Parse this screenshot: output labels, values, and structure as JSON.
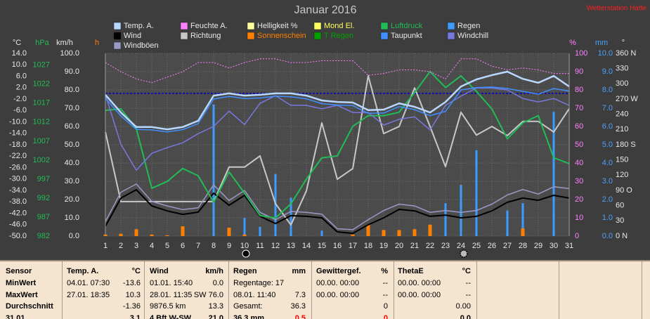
{
  "chart_data": {
    "type": "combo",
    "title": "Januar 2016",
    "caption": "Wetterstation Hatte",
    "x": [
      1,
      2,
      3,
      4,
      5,
      6,
      7,
      8,
      9,
      10,
      11,
      12,
      13,
      14,
      15,
      16,
      17,
      18,
      19,
      20,
      21,
      22,
      23,
      24,
      25,
      26,
      27,
      28,
      29,
      30,
      31
    ],
    "xlim": [
      1,
      31
    ],
    "grid": true,
    "axes": {
      "temp": {
        "label": "°C",
        "color": "#e8e8e8",
        "lim": [
          -50,
          14
        ],
        "ticks": [
          {
            "value": 14,
            "label": "14.0"
          },
          {
            "value": 10,
            "label": "10.0"
          },
          {
            "value": 6,
            "label": "6.0"
          },
          {
            "value": 2,
            "label": "2.0"
          },
          {
            "value": -2,
            "label": "-2.0"
          },
          {
            "value": -6,
            "label": "-6.0"
          },
          {
            "value": -10,
            "label": "-10.0"
          },
          {
            "value": -14,
            "label": "-14.0"
          },
          {
            "value": -18,
            "label": "-18.0"
          },
          {
            "value": -22,
            "label": "-22.0"
          },
          {
            "value": -26,
            "label": "-26.0"
          },
          {
            "value": -30,
            "label": "-30.0"
          },
          {
            "value": -34,
            "label": "-34.0"
          },
          {
            "value": -38,
            "label": "-38.0"
          },
          {
            "value": -42,
            "label": "-42.0"
          },
          {
            "value": -46,
            "label": "-46.0"
          },
          {
            "value": -50,
            "label": "-50.0"
          }
        ]
      },
      "pressure": {
        "label": "hPa",
        "color": "#22bb55",
        "lim": [
          982,
          1030.1
        ],
        "ticks": [
          1027,
          1022,
          1017,
          1012,
          1007,
          1002,
          997,
          992,
          987,
          982
        ]
      },
      "wind": {
        "label": "km/h",
        "color": "#e8e8e8",
        "lim": [
          0,
          100
        ],
        "ticks": [
          {
            "value": 100,
            "label": "100.0"
          },
          {
            "value": 90,
            "label": "90.0"
          },
          {
            "value": 80,
            "label": "80.0"
          },
          {
            "value": 70,
            "label": "70.0"
          },
          {
            "value": 60,
            "label": "60.0"
          },
          {
            "value": 50,
            "label": "50.0"
          },
          {
            "value": 40,
            "label": "40.0"
          },
          {
            "value": 30,
            "label": "30.0"
          },
          {
            "value": 20,
            "label": "20.0"
          },
          {
            "value": 10,
            "label": "10.0"
          },
          {
            "value": 0,
            "label": "0.0"
          }
        ]
      },
      "sun": {
        "label": "h",
        "color": "#ff8000",
        "lim": [
          0,
          24
        ],
        "ticks": []
      },
      "percent": {
        "label": "%",
        "color": "#ff80ff",
        "lim": [
          0,
          100
        ],
        "ticks": [
          100,
          90,
          80,
          70,
          60,
          50,
          40,
          30,
          20,
          10,
          0
        ]
      },
      "rain": {
        "label": "mm",
        "color": "#4aa0ff",
        "lim": [
          0,
          10
        ],
        "ticks": [
          {
            "value": 10,
            "label": "10.0"
          },
          {
            "value": 9,
            "label": "9.0"
          },
          {
            "value": 8,
            "label": "8.0"
          },
          {
            "value": 7,
            "label": "7.0"
          },
          {
            "value": 6,
            "label": "6.0"
          },
          {
            "value": 5,
            "label": "5.0"
          },
          {
            "value": 4,
            "label": "4.0"
          },
          {
            "value": 3,
            "label": "3.0"
          },
          {
            "value": 2,
            "label": "2.0"
          },
          {
            "value": 1,
            "label": "1.0"
          },
          {
            "value": 0,
            "label": "0.0"
          }
        ]
      },
      "direction": {
        "label": "°",
        "color": "#e8e8e8",
        "lim": [
          0,
          360
        ],
        "ticks": [
          {
            "value": 360,
            "label": "360 N"
          },
          330,
          300,
          {
            "value": 270,
            "label": "270 W"
          },
          240,
          210,
          {
            "value": 180,
            "label": "180 S"
          },
          150,
          120,
          {
            "value": 90,
            "label": "90 O"
          },
          60,
          30,
          {
            "value": 0,
            "label": "0 N"
          }
        ]
      }
    },
    "reference_line": {
      "axis": "temp",
      "value": 0,
      "color": "#0000c8"
    },
    "series": [
      {
        "name": "Temp. A.",
        "color": "#b8d8ff",
        "type": "line",
        "axis": "temp",
        "width": 2.5,
        "values": [
          -0.5,
          -6.7,
          -11.8,
          -11.8,
          -12.6,
          -11.8,
          -9.6,
          -0.8,
          0.0,
          -0.8,
          -0.5,
          0.0,
          0.0,
          -0.8,
          -2.5,
          -3.0,
          -3.2,
          -5.9,
          -5.7,
          -3.5,
          -4.7,
          -6.7,
          -3.0,
          2.4,
          4.9,
          6.4,
          7.6,
          5.1,
          3.7,
          6.1,
          2.4
        ]
      },
      {
        "name": "Feuchte A.",
        "color": "#ff80ff",
        "type": "line",
        "style": "dotted",
        "axis": "percent",
        "width": 1,
        "values": [
          95,
          90,
          86,
          84,
          87,
          90,
          95,
          95,
          92,
          95,
          97,
          97,
          95,
          95,
          96,
          96,
          96,
          88,
          89,
          91,
          91,
          90,
          86,
          97,
          97,
          93,
          91,
          92,
          91,
          89,
          89
        ]
      },
      {
        "name": "Helligkeit %",
        "color": "#ffffa0"
      },
      {
        "name": "Mond El.",
        "color": "#ffff60"
      },
      {
        "name": "Luftdruck",
        "color": "#22bb55",
        "type": "line",
        "axis": "pressure",
        "width": 2,
        "values": [
          1015.1,
          1015.5,
          1010.3,
          994.6,
          996.4,
          999.8,
          997.9,
          990.9,
          998.9,
          993.3,
          987.4,
          986.8,
          990.5,
          997.0,
          1002.6,
          1003.1,
          1010.9,
          1013.7,
          1013.7,
          1014.6,
          1019.8,
          1025.3,
          1021.1,
          1024.2,
          1020.1,
          1015.5,
          1007.6,
          1011.8,
          1013.7,
          1002.6,
          1001.1
        ]
      },
      {
        "name": "Regen",
        "color": "#3c9cff",
        "type": "bar",
        "axis": "rain",
        "values": [
          0,
          0,
          0,
          0,
          0,
          0,
          0,
          7.2,
          0,
          1.0,
          0.5,
          3.4,
          2.1,
          0,
          0.3,
          0,
          0,
          0,
          0,
          0,
          0,
          0,
          1.8,
          2.8,
          4.7,
          0,
          1.4,
          1.8,
          0,
          6.8,
          0
        ]
      },
      {
        "name": "Wind",
        "color": "#000000",
        "type": "line",
        "axis": "wind",
        "width": 2,
        "values": [
          5.4,
          20.8,
          25.4,
          16.5,
          13.8,
          11.9,
          13.1,
          23.5,
          16.9,
          22.3,
          10.8,
          6.9,
          11.2,
          10.8,
          10.0,
          2.3,
          1.5,
          6.2,
          10.0,
          14.6,
          13.8,
          10.8,
          11.5,
          10.0,
          10.8,
          13.8,
          18.5,
          20.8,
          19.6,
          22.3,
          20.8
        ]
      },
      {
        "name": "Richtung",
        "color": "#c8c8c8",
        "type": "line",
        "axis": "direction",
        "width": 2,
        "values": [
          205,
          68,
          68,
          68,
          68,
          68,
          68,
          68,
          136,
          136,
          158,
          64,
          22,
          89,
          223,
          112,
          133,
          316,
          202,
          216,
          292,
          216,
          137,
          244,
          199,
          216,
          198,
          226,
          226,
          205,
          251
        ]
      },
      {
        "name": "Sonnenschein",
        "color": "#ff8000",
        "type": "bar",
        "axis": "sun",
        "values": [
          0.2,
          0.3,
          0.9,
          0.2,
          0.1,
          1.3,
          0,
          0,
          1.1,
          0.2,
          0,
          0,
          0,
          0,
          0,
          0,
          0.2,
          1.5,
          0.8,
          0.8,
          0.9,
          1.5,
          0,
          0,
          0,
          0,
          0,
          1.0,
          0,
          0,
          0
        ]
      },
      {
        "name": "T Regen",
        "color": "#00a000"
      },
      {
        "name": "Taupunkt",
        "color": "#4090ff",
        "type": "line",
        "axis": "temp",
        "width": 1.5,
        "values": [
          -1.7,
          -7.9,
          -12.6,
          -12.8,
          -13.5,
          -12.7,
          -10.6,
          -2.0,
          -1.1,
          -1.8,
          -1.6,
          -1.0,
          -1.2,
          -1.9,
          -3.6,
          -4.1,
          -4.3,
          -7.0,
          -6.9,
          -4.6,
          -5.7,
          -7.8,
          -6.3,
          1.2,
          2.0,
          2.2,
          1.7,
          0.7,
          -0.3,
          1.7,
          0.8
        ]
      },
      {
        "name": "Windchill",
        "color": "#7878e0",
        "type": "line",
        "axis": "temp",
        "width": 1.5,
        "values": [
          -0.5,
          -17.8,
          -26.9,
          -21.0,
          -19.0,
          -17.3,
          -14.1,
          -11.6,
          -6.2,
          -10.9,
          -3.5,
          -0.8,
          -4.2,
          -4.2,
          -5.4,
          -4.2,
          -6.7,
          -6.7,
          -11.1,
          -9.1,
          -8.2,
          -12.8,
          -4.2,
          -1.0,
          1.9,
          1.9,
          1.2,
          -1.8,
          -3.0,
          -1.8,
          -4.2
        ]
      },
      {
        "name": "Windböen",
        "color": "#9a9ac8",
        "type": "line",
        "axis": "wind",
        "width": 1.5,
        "values": [
          8.0,
          24.0,
          28.5,
          19.0,
          16.5,
          14.5,
          15.5,
          28.0,
          19.5,
          25.0,
          13.0,
          9.0,
          13.5,
          13.0,
          12.0,
          4.0,
          3.5,
          9.0,
          14.0,
          17.5,
          16.5,
          13.0,
          14.0,
          13.0,
          14.0,
          17.5,
          22.5,
          25.5,
          23.0,
          27.0,
          26.0
        ]
      }
    ]
  },
  "table": {
    "header": [
      "Sensor",
      "Temp. A.",
      "°C",
      "Wind",
      "km/h",
      "Regen",
      "mm",
      "Gewittergef.",
      "%",
      "ThetaE",
      "°C"
    ],
    "rows": [
      [
        "MinWert",
        "04.01. 07:30",
        "-13.6",
        "01.01. 15:40",
        "0.0",
        "Regentage: 17",
        null,
        "00.00. 00:00",
        "--",
        "00.00. 00:00",
        "--"
      ],
      [
        "MaxWert",
        "27.01. 18:35",
        "10.3",
        "28.01. 11:35",
        "SW 76.0",
        "08.01. 11:40",
        "7.3",
        "00.00. 00:00",
        "--",
        "00.00. 00:00",
        "--"
      ],
      [
        "Durchschnitt",
        null,
        "-1.36",
        "9876.5 km",
        "13.3",
        "Gesamt:",
        "36.3",
        null,
        "0",
        null,
        "0.00"
      ],
      [
        "31.01.",
        null,
        "3.1",
        "4 Bft W-SW",
        "21.0",
        "36.3 mm",
        "0.5",
        null,
        "0",
        null,
        "0.0"
      ]
    ]
  }
}
